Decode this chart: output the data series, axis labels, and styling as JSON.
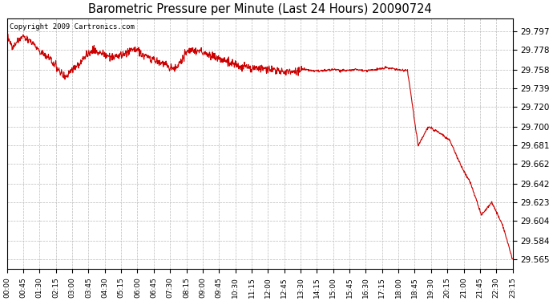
{
  "title": "Barometric Pressure per Minute (Last 24 Hours) 20090724",
  "copyright": "Copyright 2009 Cartronics.com",
  "line_color": "#cc0000",
  "background_color": "#ffffff",
  "grid_color": "#bbbbbb",
  "yticks": [
    29.565,
    29.584,
    29.604,
    29.623,
    29.642,
    29.662,
    29.681,
    29.7,
    29.72,
    29.739,
    29.758,
    29.778,
    29.797
  ],
  "xtick_labels": [
    "00:00",
    "00:45",
    "01:30",
    "02:15",
    "03:00",
    "03:45",
    "04:30",
    "05:15",
    "06:00",
    "06:45",
    "07:30",
    "08:15",
    "09:00",
    "09:45",
    "10:30",
    "11:15",
    "12:00",
    "12:45",
    "13:30",
    "14:15",
    "15:00",
    "15:45",
    "16:30",
    "17:15",
    "18:00",
    "18:45",
    "19:30",
    "20:15",
    "21:00",
    "21:45",
    "22:30",
    "23:15"
  ],
  "ymin": 29.555,
  "ymax": 29.81,
  "n_minutes": 1440,
  "keypoints_x": [
    0,
    15,
    45,
    75,
    90,
    120,
    165,
    200,
    240,
    280,
    310,
    360,
    390,
    420,
    450,
    480,
    510,
    540,
    570,
    600,
    630,
    660,
    690,
    720,
    750,
    780,
    810,
    840,
    855,
    870,
    900,
    930,
    960,
    990,
    1020,
    1050,
    1080,
    1110,
    1140,
    1170,
    1200,
    1230,
    1260,
    1290,
    1320,
    1350,
    1380,
    1410,
    1439
  ],
  "keypoints_y": [
    29.795,
    29.78,
    29.792,
    29.785,
    29.778,
    29.77,
    29.75,
    29.762,
    29.778,
    29.773,
    29.77,
    29.779,
    29.773,
    29.768,
    29.763,
    29.758,
    29.776,
    29.778,
    29.774,
    29.77,
    29.766,
    29.762,
    29.76,
    29.76,
    29.758,
    29.756,
    29.756,
    29.758,
    29.758,
    29.757,
    29.757,
    29.758,
    29.757,
    29.758,
    29.757,
    29.758,
    29.76,
    29.758,
    29.757,
    29.681,
    29.7,
    29.694,
    29.686,
    29.662,
    29.642,
    29.61,
    29.623,
    29.6,
    29.565
  ]
}
